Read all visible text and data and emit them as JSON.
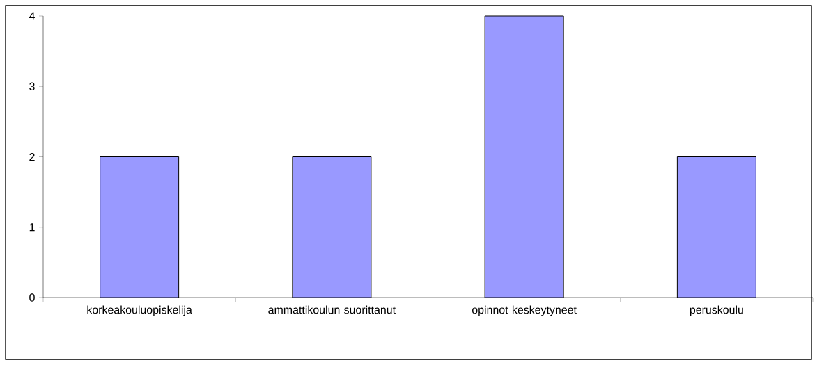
{
  "chart_data": {
    "type": "bar",
    "categories": [
      "korkeakouluopiskelija",
      "ammattikoulun suorittanut",
      "opinnot keskeytyneet",
      "peruskoulu"
    ],
    "values": [
      2,
      2,
      4,
      2
    ],
    "color": "#9999ff",
    "ylim": [
      0,
      4
    ],
    "yticks": [
      0,
      1,
      2,
      3,
      4
    ]
  }
}
